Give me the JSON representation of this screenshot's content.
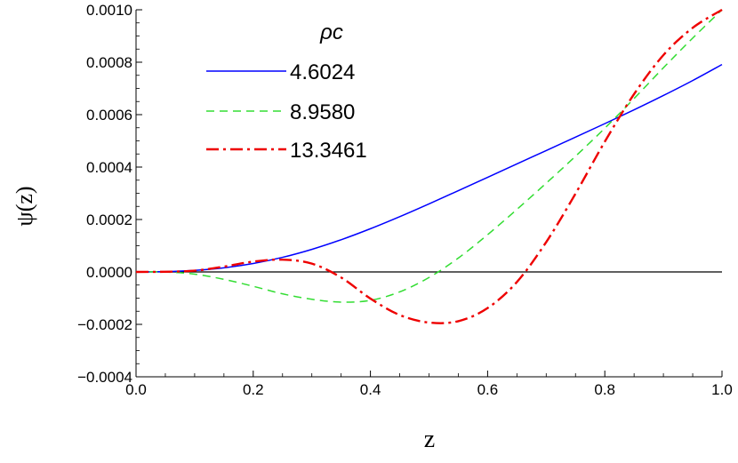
{
  "chart_data": {
    "type": "line",
    "xlabel": "z",
    "ylabel": "ψ(z)",
    "xlim": [
      0.0,
      1.0
    ],
    "ylim": [
      -0.0004,
      0.001
    ],
    "x_ticks": [
      "0.0",
      "0.2",
      "0.4",
      "0.6",
      "0.8",
      "1.0"
    ],
    "y_ticks": [
      "−0.0004",
      "−0.0002",
      "0.0000",
      "0.0002",
      "0.0004",
      "0.0006",
      "0.0008",
      "0.0010"
    ],
    "legend_title": "ρc",
    "legend_placement": "top-left",
    "grid": false,
    "reference_line_y": 0.0,
    "series": [
      {
        "name": "4.6024",
        "color": "#0000ff",
        "dash": "solid",
        "x": [
          0.0,
          0.05,
          0.1,
          0.15,
          0.2,
          0.25,
          0.3,
          0.35,
          0.4,
          0.45,
          0.5,
          0.55,
          0.6,
          0.65,
          0.7,
          0.75,
          0.8,
          0.85,
          0.9,
          0.95,
          1.0
        ],
        "y": [
          0.0,
          1.2e-06,
          5.8e-06,
          1.57e-05,
          3.22e-05,
          5.57e-05,
          8.61e-05,
          0.0001228,
          0.0001648,
          0.0002108,
          0.0002596,
          0.00031,
          0.0003609,
          0.000412,
          0.000463,
          0.0005141,
          0.0005657,
          0.0006184,
          0.000673,
          0.0007301,
          0.0007911
        ]
      },
      {
        "name": "8.9580",
        "color": "#33dd33",
        "dash": "dashed",
        "x": [
          0.0,
          0.05,
          0.1,
          0.15,
          0.2,
          0.25,
          0.3,
          0.35,
          0.4,
          0.45,
          0.5,
          0.55,
          0.6,
          0.65,
          0.7,
          0.75,
          0.8,
          0.85,
          0.9,
          0.95,
          1.0
        ],
        "y": [
          0.0,
          -4e-07,
          -8.3e-06,
          -2.82e-05,
          -5.47e-05,
          -8.36e-05,
          -0.0001043,
          -0.0001151,
          -0.0001085,
          -7.6e-05,
          -2.12e-05,
          5.29e-05,
          0.0001421,
          0.0002385,
          0.0003386,
          0.0004413,
          0.0005483,
          0.0006616,
          0.0007787,
          0.000892,
          0.001
        ]
      },
      {
        "name": "13.3461",
        "color": "#ee0000",
        "dash": "dashdot",
        "x": [
          0.0,
          0.05,
          0.1,
          0.15,
          0.2,
          0.25,
          0.3,
          0.35,
          0.4,
          0.45,
          0.5,
          0.55,
          0.6,
          0.65,
          0.7,
          0.75,
          0.8,
          0.85,
          0.9,
          0.95,
          1.0
        ],
        "y": [
          0.0,
          7e-07,
          4.7e-06,
          2.03e-05,
          3.94e-05,
          4.67e-05,
          3.19e-05,
          -2.12e-05,
          -0.0001016,
          -0.0001644,
          -0.000193,
          -0.0001878,
          -0.0001378,
          -3.83e-05,
          0.0001139,
          0.0002986,
          0.0004969,
          0.0006785,
          0.0008271,
          0.0009312,
          0.001
        ]
      }
    ]
  }
}
